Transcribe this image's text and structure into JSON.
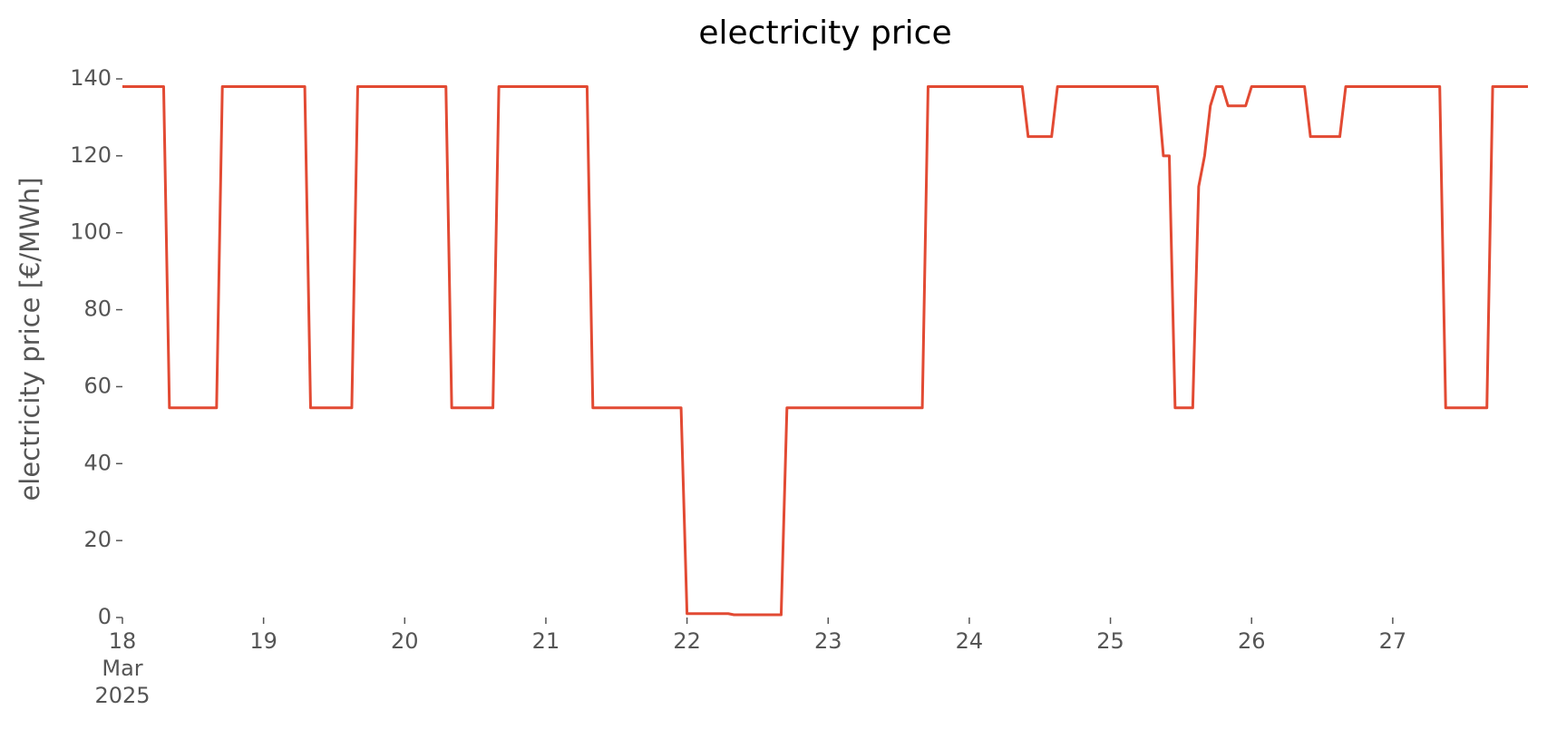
{
  "chart_data": {
    "type": "line",
    "title": "electricity price",
    "ylabel": "electricity price [€/MWh]",
    "x": [
      18,
      18.292,
      18.333,
      18.667,
      18.708,
      19.292,
      19.333,
      19.625,
      19.667,
      20.292,
      20.333,
      20.625,
      20.667,
      21.292,
      21.333,
      21.958,
      22.0,
      22.292,
      22.333,
      22.667,
      22.708,
      23.667,
      23.708,
      24.375,
      24.417,
      24.583,
      24.625,
      25.333,
      25.375,
      25.417,
      25.458,
      25.583,
      25.625,
      25.667,
      25.708,
      25.75,
      25.792,
      25.833,
      25.958,
      26.0,
      26.375,
      26.417,
      26.625,
      26.667,
      27.333,
      27.375,
      27.667,
      27.708,
      27.958
    ],
    "series": [
      {
        "name": "electricity price",
        "color": "#e24a33",
        "values": [
          138,
          138,
          54.5,
          54.5,
          138,
          138,
          54.5,
          54.5,
          138,
          138,
          54.5,
          54.5,
          138,
          138,
          54.5,
          54.5,
          1,
          1,
          0.7,
          0.7,
          54.5,
          54.5,
          138,
          138,
          125,
          125,
          138,
          138,
          120,
          120,
          54.5,
          54.5,
          112,
          120,
          133,
          138,
          138,
          133,
          133,
          138,
          138,
          125,
          125,
          138,
          138,
          54.5,
          54.5,
          138,
          138
        ]
      }
    ],
    "xlim": [
      18,
      27.958
    ],
    "xticks": [
      {
        "value": 18,
        "label": "18\nMar\n2025"
      },
      19,
      20,
      21,
      22,
      23,
      24,
      25,
      26,
      27
    ],
    "ylim": [
      0,
      140
    ],
    "yticks": [
      0,
      20,
      40,
      60,
      80,
      100,
      120,
      140
    ],
    "grid": false
  }
}
